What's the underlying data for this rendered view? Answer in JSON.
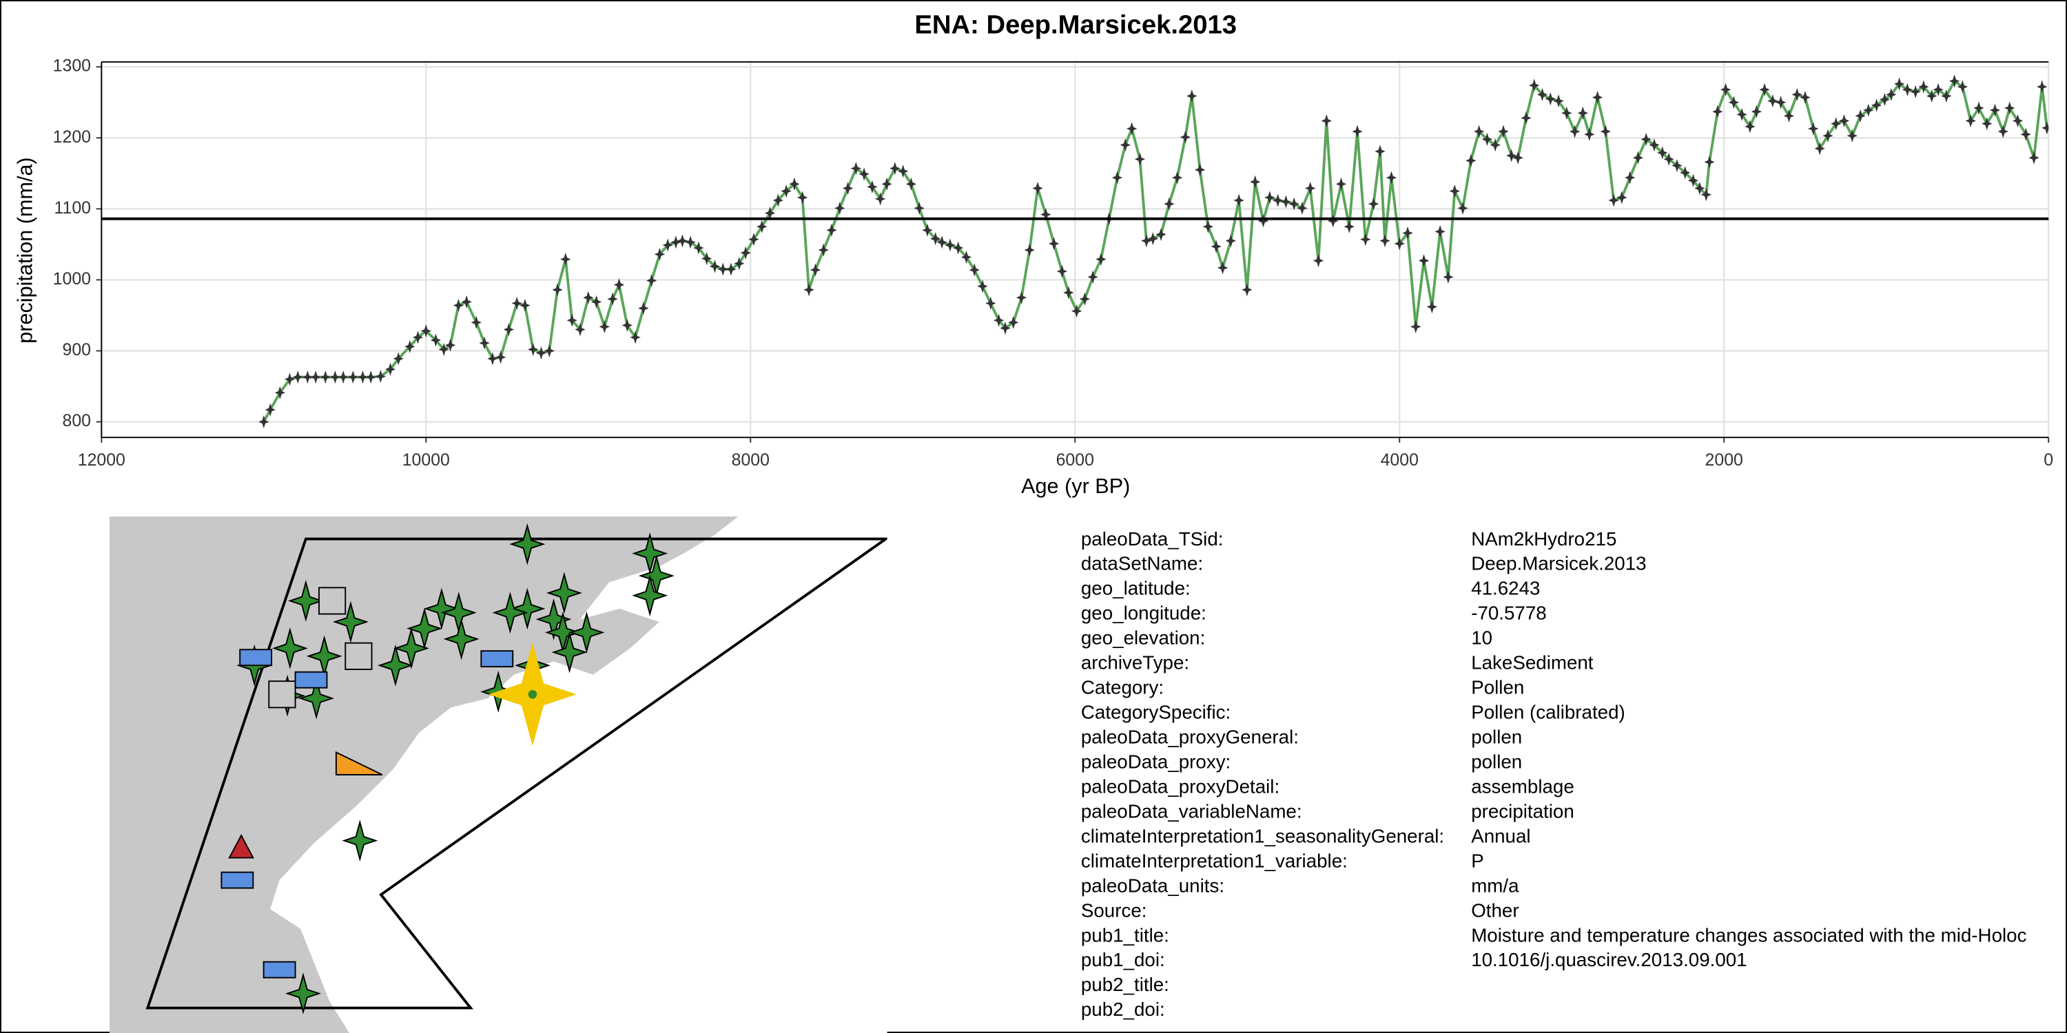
{
  "chart_data": {
    "type": "line",
    "title": "ENA: Deep.Marsicek.2013",
    "xlabel": "Age (yr BP)",
    "ylabel": "precipitation (mm/a)",
    "xlim": [
      12000,
      0
    ],
    "xticks": [
      12000,
      10000,
      8000,
      6000,
      4000,
      2000,
      0
    ],
    "ylim": [
      778,
      1307
    ],
    "yticks": [
      800,
      900,
      1000,
      1100,
      1200,
      1300
    ],
    "grid": true,
    "hline": 1086,
    "x": [
      11000,
      10960,
      10900,
      10840,
      10790,
      10730,
      10680,
      10620,
      10560,
      10510,
      10450,
      10390,
      10340,
      10280,
      10220,
      10170,
      10100,
      10050,
      10000,
      9940,
      9890,
      9850,
      9800,
      9750,
      9690,
      9640,
      9590,
      9540,
      9490,
      9440,
      9390,
      9340,
      9290,
      9240,
      9190,
      9140,
      9100,
      9050,
      9000,
      8950,
      8900,
      8850,
      8810,
      8760,
      8710,
      8660,
      8610,
      8560,
      8510,
      8460,
      8420,
      8370,
      8320,
      8270,
      8220,
      8170,
      8120,
      8070,
      8030,
      7980,
      7930,
      7880,
      7830,
      7780,
      7730,
      7680,
      7640,
      7600,
      7550,
      7500,
      7450,
      7400,
      7350,
      7300,
      7250,
      7200,
      7160,
      7110,
      7060,
      7010,
      6960,
      6910,
      6860,
      6820,
      6770,
      6720,
      6670,
      6620,
      6570,
      6520,
      6470,
      6430,
      6380,
      6330,
      6280,
      6230,
      6180,
      6130,
      6080,
      6040,
      5990,
      5940,
      5890,
      5840,
      5790,
      5740,
      5690,
      5650,
      5600,
      5560,
      5520,
      5470,
      5420,
      5370,
      5320,
      5280,
      5230,
      5180,
      5130,
      5090,
      5040,
      4990,
      4940,
      4890,
      4840,
      4800,
      4750,
      4700,
      4650,
      4600,
      4550,
      4500,
      4450,
      4410,
      4360,
      4310,
      4260,
      4210,
      4160,
      4120,
      4090,
      4050,
      4000,
      3950,
      3900,
      3850,
      3800,
      3750,
      3700,
      3660,
      3610,
      3560,
      3510,
      3460,
      3410,
      3360,
      3310,
      3270,
      3220,
      3170,
      3120,
      3070,
      3020,
      2970,
      2920,
      2870,
      2830,
      2780,
      2730,
      2680,
      2630,
      2580,
      2530,
      2480,
      2430,
      2380,
      2340,
      2290,
      2240,
      2190,
      2150,
      2110,
      2090,
      2040,
      1990,
      1940,
      1890,
      1840,
      1800,
      1750,
      1700,
      1650,
      1600,
      1550,
      1500,
      1450,
      1410,
      1360,
      1310,
      1260,
      1210,
      1160,
      1110,
      1060,
      1010,
      970,
      920,
      870,
      820,
      770,
      720,
      680,
      630,
      580,
      530,
      480,
      430,
      380,
      330,
      280,
      240,
      190,
      140,
      90,
      40,
      10
    ],
    "series": [
      {
        "color": "#5aa55a",
        "marker_color": "#333333",
        "values": [
          800,
          817,
          841,
          860,
          863,
          863,
          863,
          863,
          863,
          863,
          863,
          863,
          863,
          864,
          874,
          889,
          906,
          919,
          928,
          915,
          902,
          908,
          964,
          969,
          940,
          911,
          889,
          891,
          930,
          967,
          964,
          902,
          897,
          900,
          986,
          1029,
          943,
          930,
          975,
          969,
          934,
          973,
          993,
          936,
          919,
          960,
          999,
          1036,
          1049,
          1053,
          1055,
          1053,
          1045,
          1030,
          1019,
          1015,
          1015,
          1023,
          1038,
          1057,
          1075,
          1094,
          1112,
          1125,
          1135,
          1116,
          986,
          1014,
          1042,
          1070,
          1101,
          1129,
          1157,
          1149,
          1131,
          1114,
          1135,
          1157,
          1153,
          1135,
          1101,
          1070,
          1058,
          1053,
          1049,
          1045,
          1032,
          1014,
          991,
          967,
          943,
          932,
          940,
          975,
          1042,
          1129,
          1092,
          1051,
          1012,
          982,
          956,
          973,
          1004,
          1029,
          1086,
          1144,
          1190,
          1213,
          1170,
          1055,
          1058,
          1064,
          1107,
          1144,
          1201,
          1259,
          1155,
          1075,
          1047,
          1017,
          1055,
          1112,
          986,
          1138,
          1083,
          1116,
          1112,
          1110,
          1107,
          1101,
          1129,
          1027,
          1224,
          1083,
          1135,
          1075,
          1209,
          1057,
          1107,
          1181,
          1055,
          1144,
          1051,
          1066,
          934,
          1027,
          962,
          1068,
          1004,
          1125,
          1101,
          1168,
          1209,
          1198,
          1190,
          1209,
          1175,
          1172,
          1228,
          1274,
          1261,
          1255,
          1252,
          1235,
          1209,
          1235,
          1205,
          1257,
          1209,
          1112,
          1116,
          1144,
          1172,
          1198,
          1190,
          1179,
          1170,
          1161,
          1151,
          1140,
          1129,
          1120,
          1166,
          1237,
          1268,
          1250,
          1233,
          1216,
          1237,
          1268,
          1252,
          1250,
          1231,
          1261,
          1257,
          1213,
          1185,
          1203,
          1220,
          1224,
          1203,
          1231,
          1239,
          1246,
          1254,
          1261,
          1276,
          1268,
          1265,
          1272,
          1259,
          1268,
          1259,
          1280,
          1272,
          1224,
          1242,
          1220,
          1239,
          1209,
          1242,
          1224,
          1205,
          1172,
          1272,
          1214
        ]
      }
    ]
  },
  "metadata": {
    "rows": [
      [
        "paleoData_TSid:",
        "NAm2kHydro215"
      ],
      [
        "dataSetName:",
        "Deep.Marsicek.2013"
      ],
      [
        "geo_latitude:",
        "41.6243"
      ],
      [
        "geo_longitude:",
        "-70.5778"
      ],
      [
        "geo_elevation:",
        "10"
      ],
      [
        "archiveType:",
        "LakeSediment"
      ],
      [
        "Category:",
        "Pollen"
      ],
      [
        "CategorySpecific:",
        "Pollen (calibrated)"
      ],
      [
        "paleoData_proxyGeneral:",
        "pollen"
      ],
      [
        "paleoData_proxy:",
        "pollen"
      ],
      [
        "paleoData_proxyDetail:",
        "assemblage"
      ],
      [
        "paleoData_variableName:",
        "precipitation"
      ],
      [
        "climateInterpretation1_seasonalityGeneral:",
        "Annual"
      ],
      [
        "climateInterpretation1_variable:",
        "P"
      ],
      [
        "paleoData_units:",
        "mm/a"
      ],
      [
        "Source:",
        "Other"
      ],
      [
        "pub1_title:",
        "Moisture and temperature changes associated with the mid-Holoc"
      ],
      [
        "pub1_doi:",
        "10.1016/j.quascirev.2013.09.001"
      ],
      [
        "pub2_title:",
        ""
      ],
      [
        "pub2_doi:",
        ""
      ]
    ]
  }
}
